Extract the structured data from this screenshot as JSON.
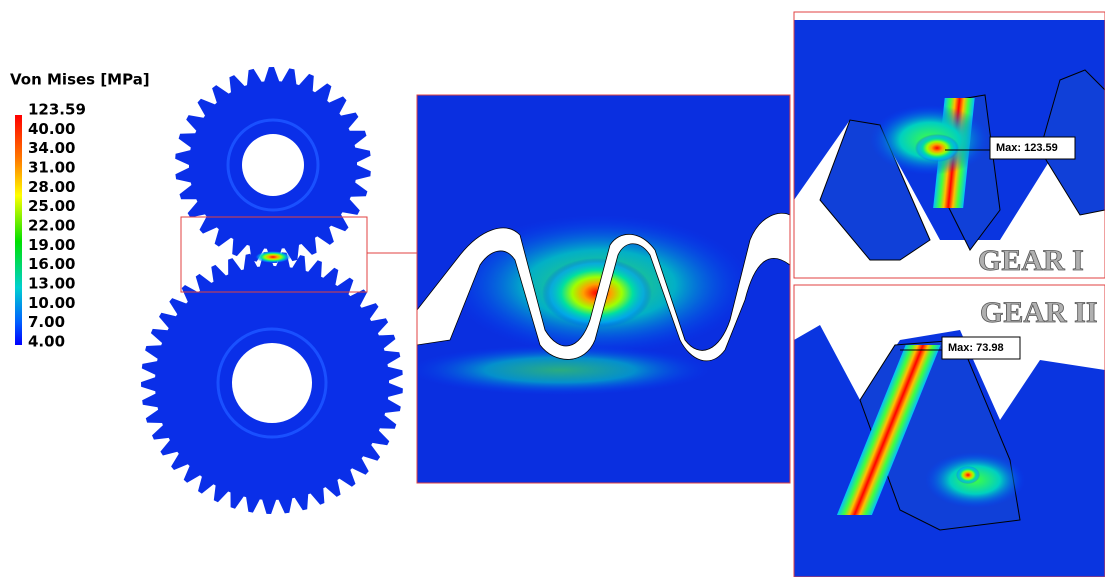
{
  "legend": {
    "title": "Von Mises [MPa]",
    "labels": [
      "123.59",
      "40.00",
      "34.00",
      "31.00",
      "28.00",
      "25.00",
      "22.00",
      "19.00",
      "16.00",
      "13.00",
      "10.00",
      "7.00",
      "4.00"
    ]
  },
  "gear_1": {
    "label": "GEAR I",
    "max_label": "Max: 123.59"
  },
  "gear_2": {
    "label": "GEAR II",
    "max_label": "Max: 73.98"
  }
}
